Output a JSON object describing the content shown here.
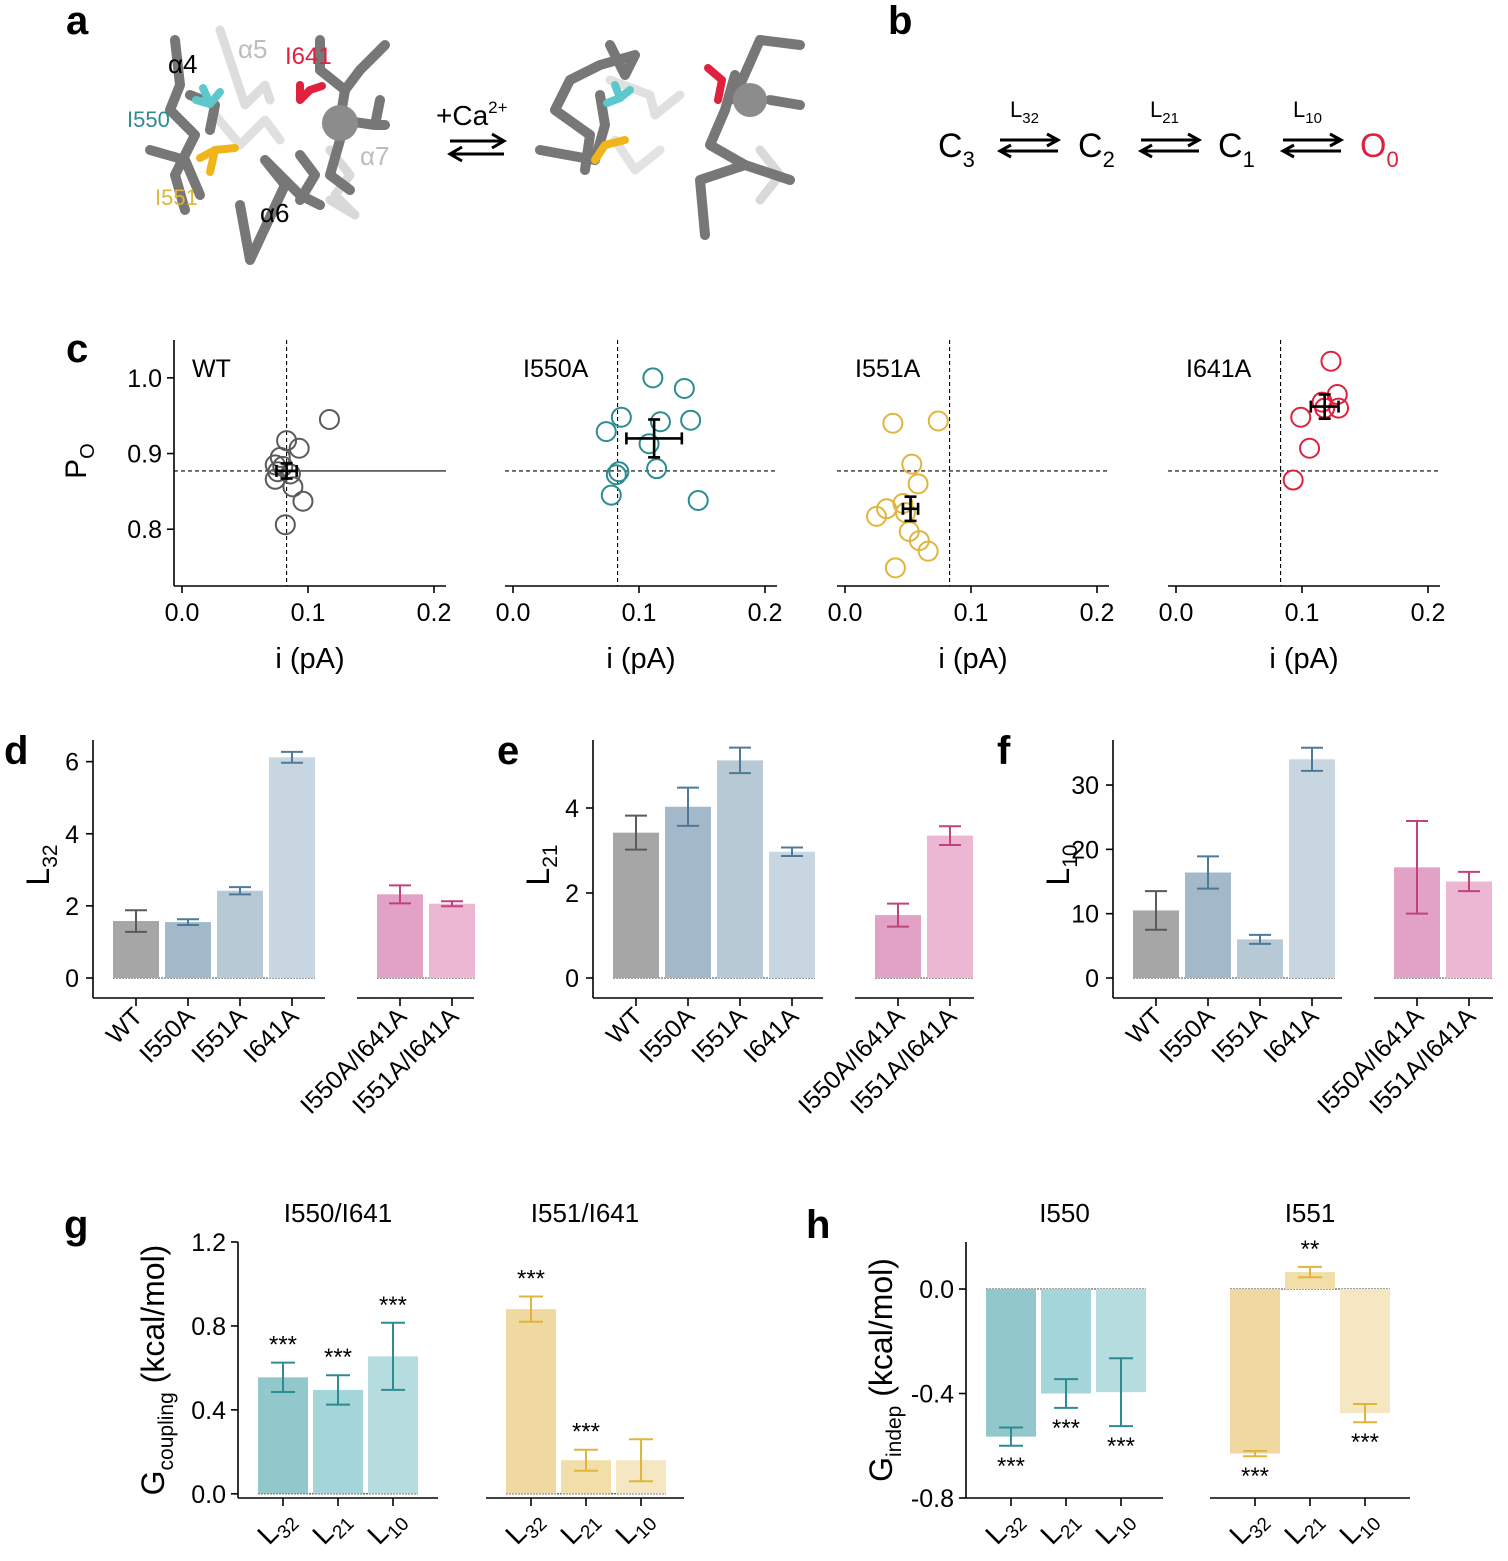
{
  "panel_letters": {
    "a": "a",
    "b": "b",
    "c": "c",
    "d": "d",
    "e": "e",
    "f": "f",
    "g": "g",
    "h": "h"
  },
  "colors": {
    "wt": "#a6a6a6",
    "wt_err": "#5a5a5a",
    "i550": "#a3b9c9",
    "i551": "#b8c9d6",
    "i641": "#c7d6e0",
    "blue_err": "#4e7a99",
    "dbl1": "#e2a2c6",
    "dbl2": "#ebb7d3",
    "pink_err": "#c2427e",
    "teal": "#2d8c91",
    "teal_bar1": "#92c7cb",
    "teal_bar2": "#a4d5d8",
    "teal_bar3": "#b5dddf",
    "gold": "#e0b53c",
    "gold_bar1": "#efd9a0",
    "gold_bar2": "#f1dea8",
    "gold_bar3": "#f5e7c1",
    "red": "#e0203f",
    "cyan": "#5cc8cc",
    "yellow": "#f1b51c",
    "gray_stick": "#6e6e6e"
  },
  "panel_a": {
    "helices": [
      "α4",
      "α5",
      "α6",
      "α7"
    ],
    "residues": [
      "I550",
      "I551",
      "I641"
    ],
    "arrow_label": "+Ca",
    "arrow_sup": "2+"
  },
  "panel_b": {
    "states": [
      {
        "main": "C",
        "sub": "3"
      },
      {
        "main": "C",
        "sub": "2"
      },
      {
        "main": "C",
        "sub": "1"
      },
      {
        "main": "O",
        "sub": "0"
      }
    ],
    "rates": [
      {
        "main": "L",
        "sub": "32"
      },
      {
        "main": "L",
        "sub": "21"
      },
      {
        "main": "L",
        "sub": "10"
      }
    ]
  },
  "chart_data": [
    {
      "id": "c",
      "type": "scatter",
      "ylabel": "P",
      "ylabel_sub": "O",
      "xlabel": "i (pA)",
      "xlim": [
        -0.01,
        0.2
      ],
      "ylim": [
        0.725,
        1.05
      ],
      "xticks": [
        "0.0",
        "0.1",
        "0.2"
      ],
      "yticks": [
        "0.8",
        "0.9",
        "1.0"
      ],
      "reference_i": 0.083,
      "reference_po": 0.877,
      "subplots": [
        {
          "name": "WT",
          "color": "#5a5a5a",
          "points": [
            [
              0.083,
              0.917
            ],
            [
              0.093,
              0.907
            ],
            [
              0.078,
              0.895
            ],
            [
              0.074,
              0.885
            ],
            [
              0.08,
              0.883
            ],
            [
              0.076,
              0.876
            ],
            [
              0.086,
              0.873
            ],
            [
              0.074,
              0.866
            ],
            [
              0.088,
              0.856
            ],
            [
              0.096,
              0.837
            ],
            [
              0.082,
              0.806
            ],
            [
              0.117,
              0.945
            ]
          ],
          "mean": [
            0.083,
            0.877
          ],
          "xerr": 0.008,
          "yerr": 0.01
        },
        {
          "name": "I550A",
          "color": "#2d8c91",
          "points": [
            [
              0.111,
              1.0
            ],
            [
              0.136,
              0.986
            ],
            [
              0.086,
              0.948
            ],
            [
              0.117,
              0.942
            ],
            [
              0.141,
              0.944
            ],
            [
              0.074,
              0.929
            ],
            [
              0.108,
              0.913
            ],
            [
              0.084,
              0.876
            ],
            [
              0.114,
              0.88
            ],
            [
              0.082,
              0.872
            ],
            [
              0.078,
              0.845
            ],
            [
              0.147,
              0.838
            ]
          ],
          "mean": [
            0.112,
            0.92
          ],
          "xerr": 0.022,
          "yerr": 0.025
        },
        {
          "name": "I551A",
          "color": "#e0b53c",
          "points": [
            [
              0.038,
              0.94
            ],
            [
              0.074,
              0.943
            ],
            [
              0.053,
              0.886
            ],
            [
              0.058,
              0.86
            ],
            [
              0.046,
              0.834
            ],
            [
              0.033,
              0.827
            ],
            [
              0.025,
              0.817
            ],
            [
              0.048,
              0.822
            ],
            [
              0.051,
              0.797
            ],
            [
              0.059,
              0.785
            ],
            [
              0.066,
              0.771
            ],
            [
              0.04,
              0.749
            ]
          ],
          "mean": [
            0.052,
            0.827
          ],
          "xerr": 0.006,
          "yerr": 0.016
        },
        {
          "name": "I641A",
          "color": "#e0203f",
          "points": [
            [
              0.123,
              1.022
            ],
            [
              0.128,
              0.978
            ],
            [
              0.116,
              0.968
            ],
            [
              0.129,
              0.96
            ],
            [
              0.099,
              0.948
            ],
            [
              0.106,
              0.907
            ],
            [
              0.093,
              0.865
            ],
            [
              0.118,
              0.96
            ]
          ],
          "mean": [
            0.118,
            0.962
          ],
          "xerr": 0.011,
          "yerr": 0.016
        }
      ]
    },
    {
      "id": "d",
      "type": "bar",
      "ylabel": "L",
      "ylabel_sub": "32",
      "ylim": [
        0,
        6.6
      ],
      "yticks": [
        "0",
        "2",
        "4",
        "6"
      ],
      "categories": [
        "WT",
        "I550A",
        "I551A",
        "I641A"
      ],
      "values": [
        1.58,
        1.55,
        2.42,
        6.12
      ],
      "errors": [
        0.3,
        0.08,
        0.1,
        0.15
      ],
      "categories2": [
        "I550A/I641A",
        "I551A/I641A"
      ],
      "values2": [
        2.32,
        2.06
      ],
      "errors2": [
        0.25,
        0.07
      ]
    },
    {
      "id": "e",
      "type": "bar",
      "ylabel": "L",
      "ylabel_sub": "21",
      "ylim": [
        0,
        5.6
      ],
      "yticks": [
        "0",
        "2",
        "4"
      ],
      "categories": [
        "WT",
        "I550A",
        "I551A",
        "I641A"
      ],
      "values": [
        3.42,
        4.03,
        5.12,
        2.97
      ],
      "errors": [
        0.4,
        0.45,
        0.3,
        0.1
      ],
      "categories2": [
        "I550A/I641A",
        "I551A/I641A"
      ],
      "values2": [
        1.48,
        3.35
      ],
      "errors2": [
        0.27,
        0.22
      ]
    },
    {
      "id": "f",
      "type": "bar",
      "ylabel": "L",
      "ylabel_sub": "10",
      "ylim": [
        0,
        37
      ],
      "yticks": [
        "0",
        "10",
        "20",
        "30"
      ],
      "categories": [
        "WT",
        "I550A",
        "I551A",
        "I641A"
      ],
      "values": [
        10.5,
        16.4,
        6.0,
        34.0
      ],
      "errors": [
        3.0,
        2.5,
        0.7,
        1.8
      ],
      "categories2": [
        "I550A/I641A",
        "I551A/I641A"
      ],
      "values2": [
        17.2,
        15.0
      ],
      "errors2": [
        7.2,
        1.5
      ]
    },
    {
      "id": "g",
      "type": "bar",
      "ylabel": "G",
      "ylabel_sub": "coupling",
      "ylabel_units": " (kcal/mol)",
      "ylim": [
        -0.02,
        1.2
      ],
      "yticks": [
        "0.0",
        "0.4",
        "0.8",
        "1.2"
      ],
      "groups": [
        {
          "title": "I550/I641",
          "categories": [
            "32",
            "21",
            "10"
          ],
          "values": [
            0.555,
            0.495,
            0.655
          ],
          "errors": [
            0.07,
            0.07,
            0.16
          ],
          "stars": [
            "***",
            "***",
            "***"
          ]
        },
        {
          "title": "I551/I641",
          "categories": [
            "32",
            "21",
            "10"
          ],
          "values": [
            0.88,
            0.16,
            0.16
          ],
          "errors": [
            0.06,
            0.05,
            0.1
          ],
          "stars": [
            "***",
            "***",
            ""
          ]
        }
      ]
    },
    {
      "id": "h",
      "type": "bar",
      "ylabel": "G",
      "ylabel_sub": "indep",
      "ylabel_units": " (kcal/mol)",
      "ylim": [
        -0.8,
        0.18
      ],
      "yticks": [
        "0.0",
        "-0.4",
        "-0.8"
      ],
      "groups": [
        {
          "title": "I550",
          "categories": [
            "32",
            "21",
            "10"
          ],
          "values": [
            -0.565,
            -0.4,
            -0.395
          ],
          "errors": [
            0.035,
            0.055,
            0.13
          ],
          "stars": [
            "***",
            "***",
            "***"
          ]
        },
        {
          "title": "I551",
          "categories": [
            "32",
            "21",
            "10"
          ],
          "values": [
            -0.63,
            0.065,
            -0.475
          ],
          "errors": [
            0.01,
            0.02,
            0.035
          ],
          "stars": [
            "***",
            "**",
            "***"
          ]
        }
      ]
    }
  ]
}
